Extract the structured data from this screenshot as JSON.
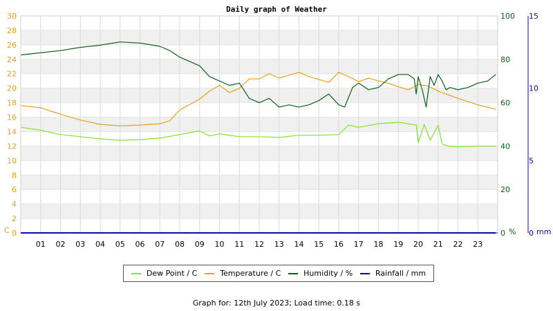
{
  "title": "Daily graph of Weather",
  "footer": "Graph for: 12th July 2023; Load time: 0.18 s",
  "units": {
    "left": "C",
    "right1": "%",
    "right2": "mm"
  },
  "colors": {
    "dew": "#7fe52a",
    "temp": "#e8a01a",
    "hum": "#0b5e16",
    "rain": "#0a0aa8",
    "axis_left": "#e8a01a",
    "axis_right1": "#0b5e16",
    "axis_right2": "#0a0aa8"
  },
  "legend": [
    {
      "label": "Dew Point / C",
      "color": "#7fe52a"
    },
    {
      "label": "Temperature / C",
      "color": "#e8a01a"
    },
    {
      "label": "Humidity / %",
      "color": "#0b5e16"
    },
    {
      "label": "Rainfall / mm",
      "color": "#0a0aa8"
    }
  ],
  "chart_data": {
    "type": "line",
    "title": "Daily graph of Weather",
    "x_ticks": [
      "01",
      "02",
      "03",
      "04",
      "05",
      "06",
      "07",
      "08",
      "09",
      "10",
      "11",
      "12",
      "13",
      "14",
      "15",
      "16",
      "17",
      "18",
      "19",
      "20",
      "21",
      "22",
      "23"
    ],
    "xlim": [
      0,
      24
    ],
    "y_left": {
      "unit": "C",
      "range": [
        0,
        30
      ],
      "ticks": [
        0,
        2,
        4,
        6,
        8,
        10,
        12,
        14,
        16,
        18,
        20,
        22,
        24,
        26,
        28,
        30
      ]
    },
    "y_right1": {
      "unit": "%",
      "range": [
        0,
        100
      ],
      "ticks": [
        0,
        20,
        40,
        60,
        80,
        100
      ]
    },
    "y_right2": {
      "unit": "mm",
      "range": [
        0,
        15
      ],
      "ticks": [
        0,
        5,
        10,
        15
      ]
    },
    "grid": true,
    "series": [
      {
        "name": "Dew Point / C",
        "axis": "left",
        "x": [
          0,
          1,
          2,
          3,
          4,
          5,
          6,
          7,
          8,
          9,
          9.5,
          10,
          11,
          12,
          13,
          14,
          15,
          16,
          16.5,
          17,
          18,
          19,
          19.9,
          20,
          20.3,
          20.6,
          21,
          21.2,
          21.5,
          22,
          23,
          23.9
        ],
        "y": [
          14.6,
          14.2,
          13.6,
          13.3,
          13.0,
          12.8,
          12.9,
          13.1,
          13.6,
          14.1,
          13.4,
          13.7,
          13.3,
          13.3,
          13.2,
          13.5,
          13.5,
          13.6,
          14.9,
          14.6,
          15.1,
          15.3,
          14.9,
          12.5,
          15.0,
          12.8,
          14.9,
          12.3,
          12.0,
          11.9,
          12.0,
          12.0
        ]
      },
      {
        "name": "Temperature / C",
        "axis": "left",
        "x": [
          0,
          1,
          2,
          3,
          4,
          5,
          6,
          7,
          7.5,
          8,
          9,
          9.5,
          10,
          10.5,
          11,
          11.5,
          12,
          12.5,
          13,
          13.5,
          14,
          14.5,
          15,
          15.5,
          16,
          16.5,
          17,
          17.5,
          18,
          18.5,
          19,
          19.5,
          20,
          20.5,
          21,
          22,
          23,
          23.9
        ],
        "y": [
          17.6,
          17.3,
          16.4,
          15.6,
          15.0,
          14.8,
          14.9,
          15.1,
          15.5,
          17.0,
          18.5,
          19.6,
          20.4,
          19.4,
          20.0,
          21.3,
          21.3,
          22.0,
          21.4,
          21.8,
          22.2,
          21.6,
          21.2,
          20.8,
          22.2,
          21.6,
          20.9,
          21.4,
          21.0,
          20.7,
          20.2,
          19.8,
          20.5,
          20.3,
          19.6,
          18.6,
          17.7,
          17.1
        ]
      },
      {
        "name": "Humidity / %",
        "axis": "left2",
        "x": [
          0,
          1,
          2,
          3,
          4,
          5,
          6,
          7,
          7.5,
          8,
          8.5,
          9,
          9.5,
          10,
          10.5,
          11,
          11.5,
          12,
          12.5,
          13,
          13.5,
          14,
          14.5,
          15,
          15.5,
          16,
          16.3,
          16.7,
          17,
          17.5,
          18,
          18.5,
          19,
          19.5,
          19.8,
          19.9,
          20,
          20.2,
          20.4,
          20.6,
          20.8,
          21,
          21.2,
          21.4,
          21.6,
          22,
          22.5,
          23,
          23.5,
          23.9
        ],
        "y": [
          82,
          83,
          84,
          85.5,
          86.5,
          88,
          87.5,
          86,
          84,
          81,
          79,
          77,
          72,
          70,
          68,
          69,
          62,
          60,
          62,
          58,
          59,
          58,
          59,
          61,
          64,
          59,
          58,
          67,
          69,
          66,
          67,
          71,
          73,
          73,
          71,
          64,
          72,
          66,
          58,
          72,
          68,
          73,
          70,
          66,
          67,
          66,
          67,
          69,
          70,
          73
        ]
      },
      {
        "name": "Rainfall / mm",
        "axis": "right2",
        "x": [
          0,
          23.9
        ],
        "y": [
          0,
          0
        ]
      }
    ]
  }
}
